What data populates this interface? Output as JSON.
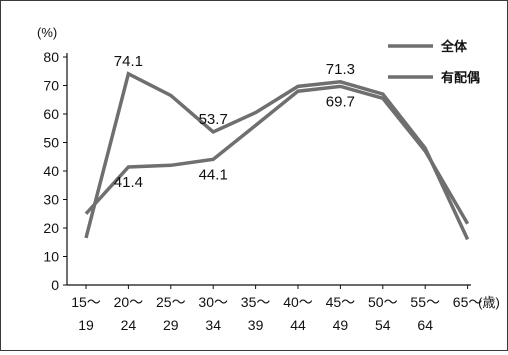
{
  "chart_data": {
    "type": "line",
    "ylabel": "(%)",
    "xunit": "(歳)",
    "ylim": [
      0,
      80
    ],
    "yticks": [
      0,
      10,
      20,
      30,
      40,
      50,
      60,
      70,
      80
    ],
    "categories": [
      {
        "top": "15～",
        "bottom": "19"
      },
      {
        "top": "20～",
        "bottom": "24"
      },
      {
        "top": "25～",
        "bottom": "29"
      },
      {
        "top": "30～",
        "bottom": "34"
      },
      {
        "top": "35～",
        "bottom": "39"
      },
      {
        "top": "40～",
        "bottom": "44"
      },
      {
        "top": "45～",
        "bottom": "49"
      },
      {
        "top": "50～",
        "bottom": "54"
      },
      {
        "top": "55～",
        "bottom": "64"
      },
      {
        "top": "65～",
        "bottom": ""
      }
    ],
    "series": [
      {
        "name": "全体",
        "values": [
          16.5,
          74.1,
          66.5,
          53.7,
          60.5,
          69.7,
          71.3,
          67.0,
          48.0,
          16.0
        ]
      },
      {
        "name": "有配偶",
        "values": [
          25.0,
          41.4,
          42.0,
          44.1,
          56.0,
          68.0,
          69.7,
          65.5,
          47.0,
          21.5
        ]
      }
    ],
    "data_labels": [
      {
        "text": "74.1",
        "series": 0,
        "index": 1,
        "pos": "above"
      },
      {
        "text": "53.7",
        "series": 0,
        "index": 3,
        "pos": "above"
      },
      {
        "text": "71.3",
        "series": 0,
        "index": 6,
        "pos": "above"
      },
      {
        "text": "41.4",
        "series": 1,
        "index": 1,
        "pos": "below"
      },
      {
        "text": "44.1",
        "series": 1,
        "index": 3,
        "pos": "below"
      },
      {
        "text": "69.7",
        "series": 1,
        "index": 6,
        "pos": "below"
      }
    ],
    "legend": "top-right",
    "grid": false,
    "colors": {
      "line": "#6f6f6f",
      "axis": "#111111"
    }
  }
}
